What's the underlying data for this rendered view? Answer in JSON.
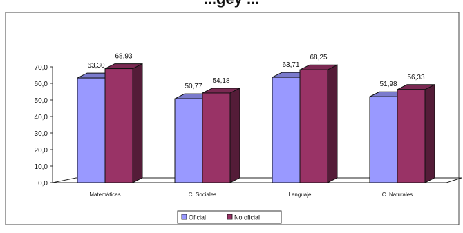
{
  "chart_data": {
    "type": "bar",
    "title": "...gey ...",
    "categories": [
      "Matemáticas",
      "C. Sociales",
      "Lenguaje",
      "C. Naturales"
    ],
    "series": [
      {
        "name": "Oficial",
        "values": [
          63.3,
          50.77,
          63.71,
          51.98
        ],
        "labels": [
          "63,30",
          "50,77",
          "63,71",
          "51,98"
        ],
        "color": "#9999ff"
      },
      {
        "name": "No oficial",
        "values": [
          68.93,
          54.18,
          68.25,
          56.33
        ],
        "labels": [
          "68,93",
          "54,18",
          "68,25",
          "56,33"
        ],
        "color": "#993366"
      }
    ],
    "ylim": [
      0,
      70
    ],
    "ytick_labels": [
      "0,0",
      "10,0",
      "20,0",
      "30,0",
      "40,0",
      "50,0",
      "60,0",
      "70,0"
    ],
    "grid": false,
    "legend_position": "bottom",
    "style": "3d-clustered-column"
  }
}
